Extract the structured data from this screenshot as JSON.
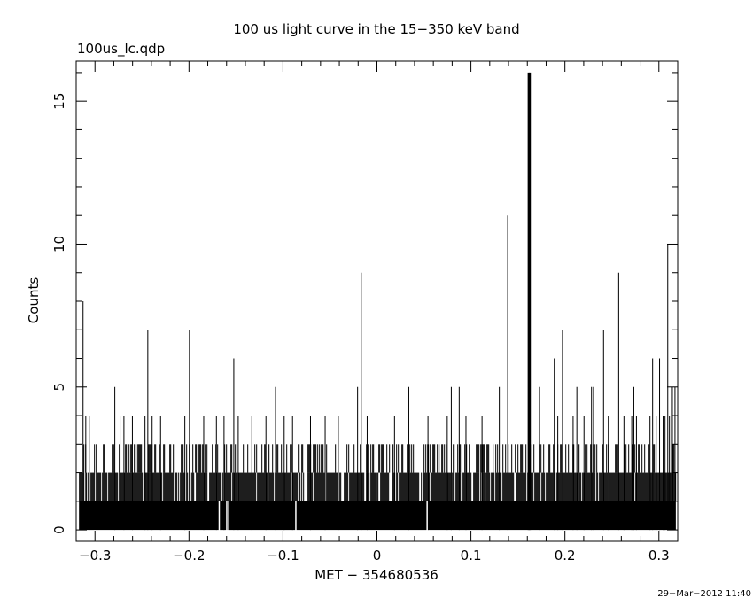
{
  "chart_data": {
    "type": "bar",
    "title": "100 us light curve in the 15−350 keV band",
    "file_label": "100us_lc.qdp",
    "xlabel": "MET − 354680536",
    "ylabel": "Counts",
    "timestamp": "29−Mar−2012 11:40",
    "xlim": [
      -0.32,
      0.32
    ],
    "ylim": [
      -0.4,
      16.4
    ],
    "bin_width": 0.0001,
    "x_ticks": [
      -0.3,
      -0.2,
      -0.1,
      0,
      0.1,
      0.2,
      0.3
    ],
    "x_tick_labels": [
      "−0.3",
      "−0.2",
      "−0.1",
      "0",
      "0.1",
      "0.2",
      "0.3"
    ],
    "y_ticks": [
      0,
      5,
      10,
      15
    ],
    "y_tick_labels": [
      "0",
      "5",
      "10",
      "15"
    ],
    "baseline_level": 1,
    "dense_level": 2,
    "peaks": [
      {
        "x": -0.3127,
        "y": 8
      },
      {
        "x": -0.3098,
        "y": 4
      },
      {
        "x": -0.3061,
        "y": 4
      },
      {
        "x": -0.2789,
        "y": 5
      },
      {
        "x": -0.2733,
        "y": 4
      },
      {
        "x": -0.2692,
        "y": 4
      },
      {
        "x": -0.2602,
        "y": 4
      },
      {
        "x": -0.2468,
        "y": 4
      },
      {
        "x": -0.2438,
        "y": 7
      },
      {
        "x": -0.2392,
        "y": 4
      },
      {
        "x": -0.2302,
        "y": 4
      },
      {
        "x": -0.2044,
        "y": 4
      },
      {
        "x": -0.1995,
        "y": 7
      },
      {
        "x": -0.1843,
        "y": 4
      },
      {
        "x": -0.1708,
        "y": 4
      },
      {
        "x": -0.1627,
        "y": 4
      },
      {
        "x": -0.1523,
        "y": 6
      },
      {
        "x": -0.1476,
        "y": 4
      },
      {
        "x": -0.1331,
        "y": 4
      },
      {
        "x": -0.1181,
        "y": 4
      },
      {
        "x": -0.1079,
        "y": 5
      },
      {
        "x": -0.0987,
        "y": 4
      },
      {
        "x": -0.0898,
        "y": 4
      },
      {
        "x": -0.0707,
        "y": 4
      },
      {
        "x": -0.0551,
        "y": 4
      },
      {
        "x": -0.0411,
        "y": 4
      },
      {
        "x": -0.0206,
        "y": 5
      },
      {
        "x": -0.0167,
        "y": 9
      },
      {
        "x": -0.0104,
        "y": 4
      },
      {
        "x": 0.0187,
        "y": 4
      },
      {
        "x": 0.0339,
        "y": 5
      },
      {
        "x": 0.0543,
        "y": 4
      },
      {
        "x": 0.0748,
        "y": 4
      },
      {
        "x": 0.0791,
        "y": 5
      },
      {
        "x": 0.0875,
        "y": 5
      },
      {
        "x": 0.0947,
        "y": 4
      },
      {
        "x": 0.1118,
        "y": 4
      },
      {
        "x": 0.1302,
        "y": 5
      },
      {
        "x": 0.1391,
        "y": 11
      },
      {
        "x": 0.1613,
        "y": 16
      },
      {
        "x": 0.1628,
        "y": 16
      },
      {
        "x": 0.1729,
        "y": 5
      },
      {
        "x": 0.1887,
        "y": 6
      },
      {
        "x": 0.1924,
        "y": 4
      },
      {
        "x": 0.1974,
        "y": 7
      },
      {
        "x": 0.2087,
        "y": 4
      },
      {
        "x": 0.2127,
        "y": 5
      },
      {
        "x": 0.2203,
        "y": 4
      },
      {
        "x": 0.2283,
        "y": 5
      },
      {
        "x": 0.2304,
        "y": 5
      },
      {
        "x": 0.2411,
        "y": 7
      },
      {
        "x": 0.2462,
        "y": 4
      },
      {
        "x": 0.2572,
        "y": 9
      },
      {
        "x": 0.2628,
        "y": 4
      },
      {
        "x": 0.2711,
        "y": 4
      },
      {
        "x": 0.2733,
        "y": 5
      },
      {
        "x": 0.2761,
        "y": 4
      },
      {
        "x": 0.2905,
        "y": 4
      },
      {
        "x": 0.2933,
        "y": 6
      },
      {
        "x": 0.2971,
        "y": 4
      },
      {
        "x": 0.3007,
        "y": 6
      },
      {
        "x": 0.3045,
        "y": 4
      },
      {
        "x": 0.3065,
        "y": 4
      },
      {
        "x": 0.3094,
        "y": 10
      },
      {
        "x": 0.3112,
        "y": 4
      },
      {
        "x": 0.3143,
        "y": 5
      },
      {
        "x": 0.3171,
        "y": 5
      }
    ],
    "gaps": [
      -0.1678,
      -0.1598,
      -0.1577,
      -0.0863,
      0.0534
    ],
    "grid": false,
    "legend": "none"
  }
}
